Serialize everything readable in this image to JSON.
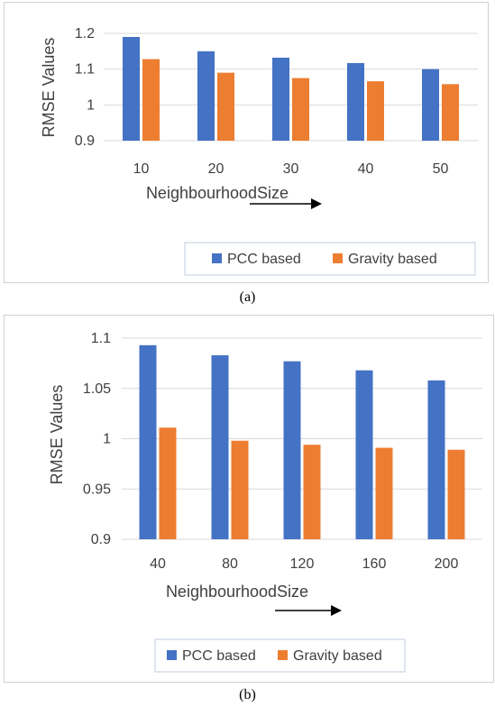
{
  "colors": {
    "pcc": "#4472C4",
    "gravity": "#ED7D31",
    "grid": "#d9d9d9",
    "text": "#404040"
  },
  "chart_data": [
    {
      "type": "bar",
      "categories": [
        "10",
        "20",
        "30",
        "40",
        "50"
      ],
      "series": [
        {
          "name": "PCC based",
          "values": [
            1.19,
            1.15,
            1.132,
            1.117,
            1.1
          ]
        },
        {
          "name": "Gravity based",
          "values": [
            1.128,
            1.09,
            1.075,
            1.066,
            1.058
          ]
        }
      ],
      "xlabel": "NeighbourhoodSize",
      "ylabel": "RMSE Values",
      "ylim": [
        0.9,
        1.2
      ],
      "yticks": [
        "0.9",
        "1",
        "1.1",
        "1.2"
      ],
      "grid": true,
      "legend": "bottom",
      "caption": "(a)"
    },
    {
      "type": "bar",
      "categories": [
        "40",
        "80",
        "120",
        "160",
        "200"
      ],
      "series": [
        {
          "name": "PCC based",
          "values": [
            1.093,
            1.083,
            1.077,
            1.068,
            1.058
          ]
        },
        {
          "name": "Gravity based",
          "values": [
            1.011,
            0.998,
            0.994,
            0.991,
            0.989
          ]
        }
      ],
      "xlabel": "NeighbourhoodSize",
      "ylabel": "RMSE Values",
      "ylim": [
        0.9,
        1.1
      ],
      "yticks": [
        "0.9",
        "0.95",
        "1",
        "1.05",
        "1.1"
      ],
      "grid": true,
      "legend": "bottom",
      "caption": "(b)"
    }
  ]
}
